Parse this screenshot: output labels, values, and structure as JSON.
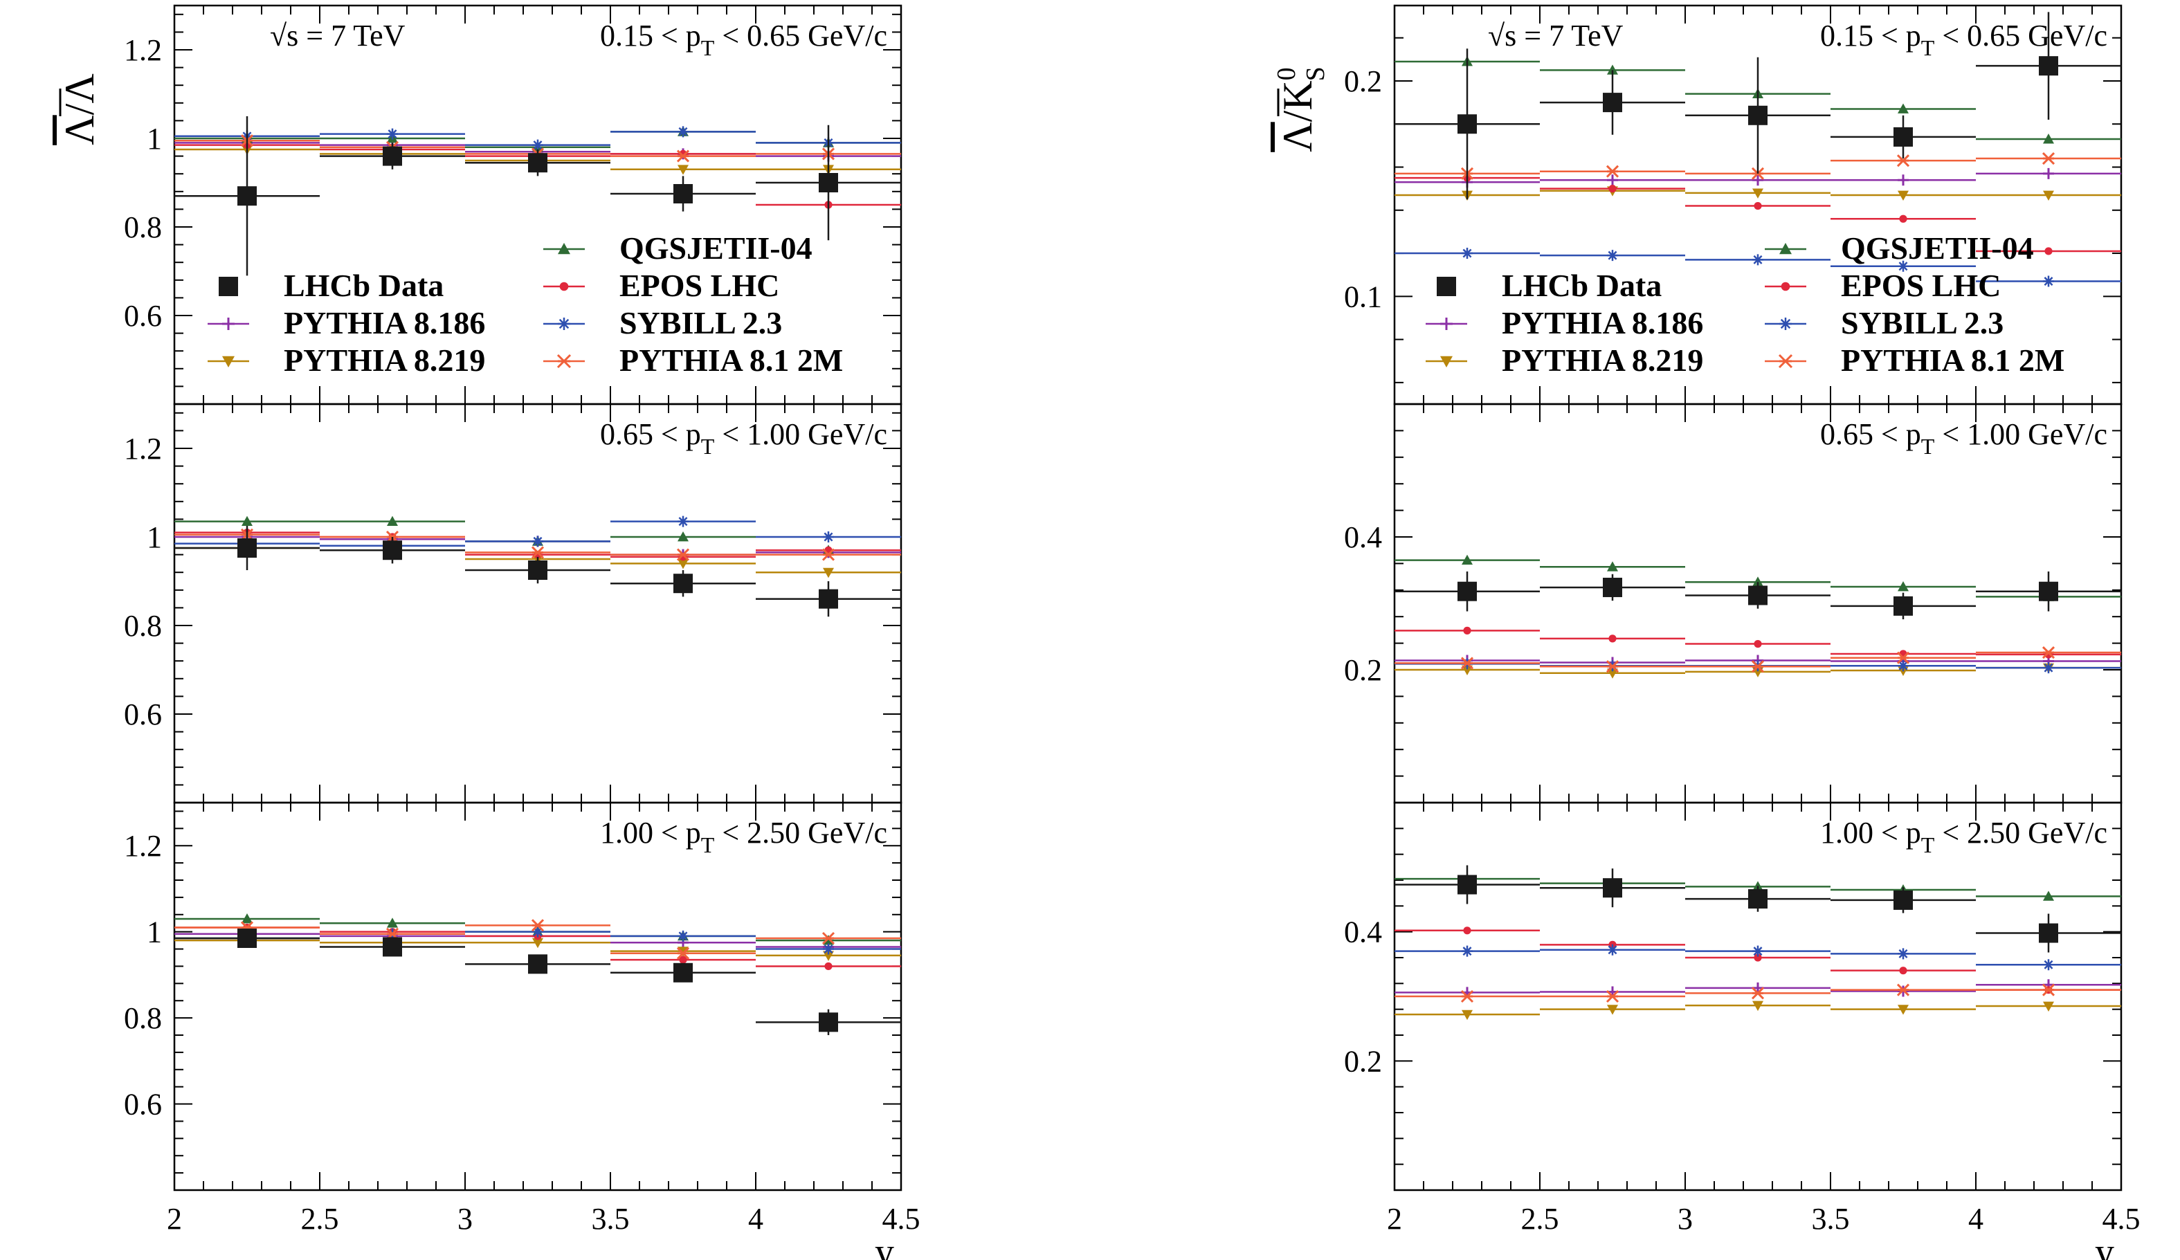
{
  "chart_data": {
    "type": "scatter",
    "x_bins": [
      [
        2.0,
        2.5
      ],
      [
        2.5,
        3.0
      ],
      [
        3.0,
        3.5
      ],
      [
        3.5,
        4.0
      ],
      [
        4.0,
        4.5
      ]
    ],
    "x_ticks": [
      "2",
      "2.5",
      "3",
      "3.5",
      "4",
      "4.5"
    ],
    "xlabel": "y",
    "energy_label": "√s = 7 TeV",
    "legend_left": [
      "LHCb Data",
      "PYTHIA 8.186",
      "PYTHIA 8.219"
    ],
    "legend_right": [
      "QGSJETII-04",
      "EPOS LHC",
      "SYBILL 2.3",
      "PYTHIA 8.1 2M"
    ],
    "series_styles": [
      {
        "name": "LHCb Data",
        "color": "#1a1a1a",
        "marker": "square"
      },
      {
        "name": "PYTHIA 8.186",
        "color": "#8b2fa6",
        "marker": "plus"
      },
      {
        "name": "PYTHIA 8.219",
        "color": "#b8860b",
        "marker": "triangle-down"
      },
      {
        "name": "QGSJETII-04",
        "color": "#2e6b35",
        "marker": "triangle-up"
      },
      {
        "name": "EPOS LHC",
        "color": "#e0283c",
        "marker": "circle"
      },
      {
        "name": "SYBILL 2.3",
        "color": "#2e4fb0",
        "marker": "asterisk"
      },
      {
        "name": "PYTHIA 8.1 2M",
        "color": "#f0603a",
        "marker": "cross"
      }
    ],
    "panels": [
      {
        "column": "left",
        "row": 0,
        "ylabel_main": "Λ",
        "ylabel_sub": "/Λ",
        "pt_label": "0.15 < p_T < 0.65 GeV/c",
        "ylim": [
          0.4,
          1.3
        ],
        "yticks": [
          "0.6",
          "0.8",
          "1",
          "1.2"
        ],
        "data": {
          "values": [
            0.87,
            0.96,
            0.945,
            0.875,
            0.9
          ],
          "errors": [
            0.18,
            0.03,
            0.03,
            0.04,
            0.13
          ]
        },
        "models": {
          "PYTHIA 8.186": [
            0.99,
            0.985,
            0.97,
            0.965,
            0.96
          ],
          "PYTHIA 8.219": [
            0.975,
            0.965,
            0.95,
            0.93,
            0.93
          ],
          "QGSJETII-04": [
            1.0,
            1.0,
            0.98,
            1.015,
            0.99
          ],
          "EPOS LHC": [
            0.985,
            0.975,
            0.96,
            0.965,
            0.85
          ],
          "SYBILL 2.3": [
            1.005,
            1.01,
            0.985,
            1.015,
            0.99
          ],
          "PYTHIA 8.1 2M": [
            0.995,
            0.98,
            0.965,
            0.96,
            0.965
          ]
        }
      },
      {
        "column": "left",
        "row": 1,
        "pt_label": "0.65 < p_T < 1.00 GeV/c",
        "ylim": [
          0.4,
          1.3
        ],
        "yticks": [
          "0.6",
          "0.8",
          "1",
          "1.2"
        ],
        "data": {
          "values": [
            0.975,
            0.97,
            0.925,
            0.895,
            0.86
          ],
          "errors": [
            0.05,
            0.03,
            0.03,
            0.03,
            0.04
          ]
        },
        "models": {
          "PYTHIA 8.186": [
            1.0,
            0.995,
            0.99,
            0.96,
            0.965
          ],
          "PYTHIA 8.219": [
            0.975,
            0.97,
            0.95,
            0.94,
            0.92
          ],
          "QGSJETII-04": [
            1.035,
            1.035,
            0.99,
            1.0,
            0.97
          ],
          "EPOS LHC": [
            1.01,
            1.0,
            0.96,
            0.955,
            0.97
          ],
          "SYBILL 2.3": [
            0.985,
            0.98,
            0.99,
            1.035,
            1.0
          ],
          "PYTHIA 8.1 2M": [
            1.005,
            1.0,
            0.965,
            0.96,
            0.96
          ]
        }
      },
      {
        "column": "left",
        "row": 2,
        "pt_label": "1.00 < p_T < 2.50 GeV/c",
        "ylim": [
          0.4,
          1.3
        ],
        "yticks": [
          "0.6",
          "0.8",
          "1",
          "1.2"
        ],
        "data": {
          "values": [
            0.985,
            0.965,
            0.925,
            0.905,
            0.79
          ],
          "errors": [
            0.02,
            0.02,
            0.02,
            0.02,
            0.03
          ]
        },
        "models": {
          "PYTHIA 8.186": [
            0.995,
            0.99,
            0.99,
            0.975,
            0.965
          ],
          "PYTHIA 8.219": [
            0.98,
            0.975,
            0.975,
            0.955,
            0.945
          ],
          "QGSJETII-04": [
            1.03,
            1.02,
            1.0,
            0.99,
            0.98
          ],
          "EPOS LHC": [
            1.01,
            1.0,
            0.99,
            0.935,
            0.92
          ],
          "SYBILL 2.3": [
            0.985,
            0.995,
            1.0,
            0.99,
            0.96
          ],
          "PYTHIA 8.1 2M": [
            1.01,
            0.995,
            1.015,
            0.95,
            0.985
          ]
        }
      },
      {
        "column": "right",
        "row": 0,
        "ylabel_main": "Λ",
        "ylabel_sub": "/K",
        "pt_label": "0.15 < p_T < 0.65 GeV/c",
        "ylim": [
          0.05,
          0.235
        ],
        "yticks": [
          "0.1",
          "0.2"
        ],
        "data": {
          "values": [
            0.18,
            0.19,
            0.184,
            0.174,
            0.207
          ],
          "errors": [
            0.035,
            0.015,
            0.027,
            0.01,
            0.025
          ]
        },
        "models": {
          "PYTHIA 8.186": [
            0.153,
            0.154,
            0.154,
            0.154,
            0.157
          ],
          "PYTHIA 8.219": [
            0.147,
            0.149,
            0.148,
            0.147,
            0.147
          ],
          "QGSJETII-04": [
            0.209,
            0.205,
            0.194,
            0.187,
            0.173
          ],
          "EPOS LHC": [
            0.155,
            0.15,
            0.142,
            0.136,
            0.121
          ],
          "SYBILL 2.3": [
            0.12,
            0.119,
            0.117,
            0.114,
            0.107
          ],
          "PYTHIA 8.1 2M": [
            0.157,
            0.158,
            0.157,
            0.163,
            0.164
          ]
        }
      },
      {
        "column": "right",
        "row": 1,
        "pt_label": "0.65 < p_T < 1.00 GeV/c",
        "ylim": [
          0.0,
          0.6
        ],
        "yticks": [
          "0.2",
          "0.4"
        ],
        "data": {
          "values": [
            0.318,
            0.324,
            0.312,
            0.296,
            0.318
          ],
          "errors": [
            0.03,
            0.02,
            0.02,
            0.02,
            0.03
          ]
        },
        "models": {
          "PYTHIA 8.186": [
            0.214,
            0.211,
            0.214,
            0.213,
            0.213
          ],
          "PYTHIA 8.219": [
            0.2,
            0.195,
            0.197,
            0.199,
            0.203
          ],
          "QGSJETII-04": [
            0.365,
            0.355,
            0.332,
            0.325,
            0.31
          ],
          "EPOS LHC": [
            0.259,
            0.247,
            0.239,
            0.224,
            0.223
          ],
          "SYBILL 2.3": [
            0.209,
            0.206,
            0.206,
            0.206,
            0.203
          ],
          "PYTHIA 8.1 2M": [
            0.21,
            0.205,
            0.205,
            0.218,
            0.226
          ]
        }
      },
      {
        "column": "right",
        "row": 2,
        "pt_label": "1.00 < p_T < 2.50 GeV/c",
        "ylim": [
          0.0,
          0.6
        ],
        "yticks": [
          "0.2",
          "0.4"
        ],
        "data": {
          "values": [
            0.473,
            0.468,
            0.451,
            0.449,
            0.398
          ],
          "errors": [
            0.03,
            0.03,
            0.02,
            0.02,
            0.03
          ]
        },
        "models": {
          "PYTHIA 8.186": [
            0.306,
            0.307,
            0.313,
            0.308,
            0.318
          ],
          "PYTHIA 8.219": [
            0.272,
            0.28,
            0.286,
            0.28,
            0.285
          ],
          "QGSJETII-04": [
            0.482,
            0.475,
            0.47,
            0.465,
            0.455
          ],
          "EPOS LHC": [
            0.402,
            0.38,
            0.36,
            0.34,
            0.31
          ],
          "SYBILL 2.3": [
            0.37,
            0.372,
            0.37,
            0.366,
            0.349
          ],
          "PYTHIA 8.1 2M": [
            0.3,
            0.3,
            0.305,
            0.31,
            0.31
          ]
        }
      }
    ]
  }
}
